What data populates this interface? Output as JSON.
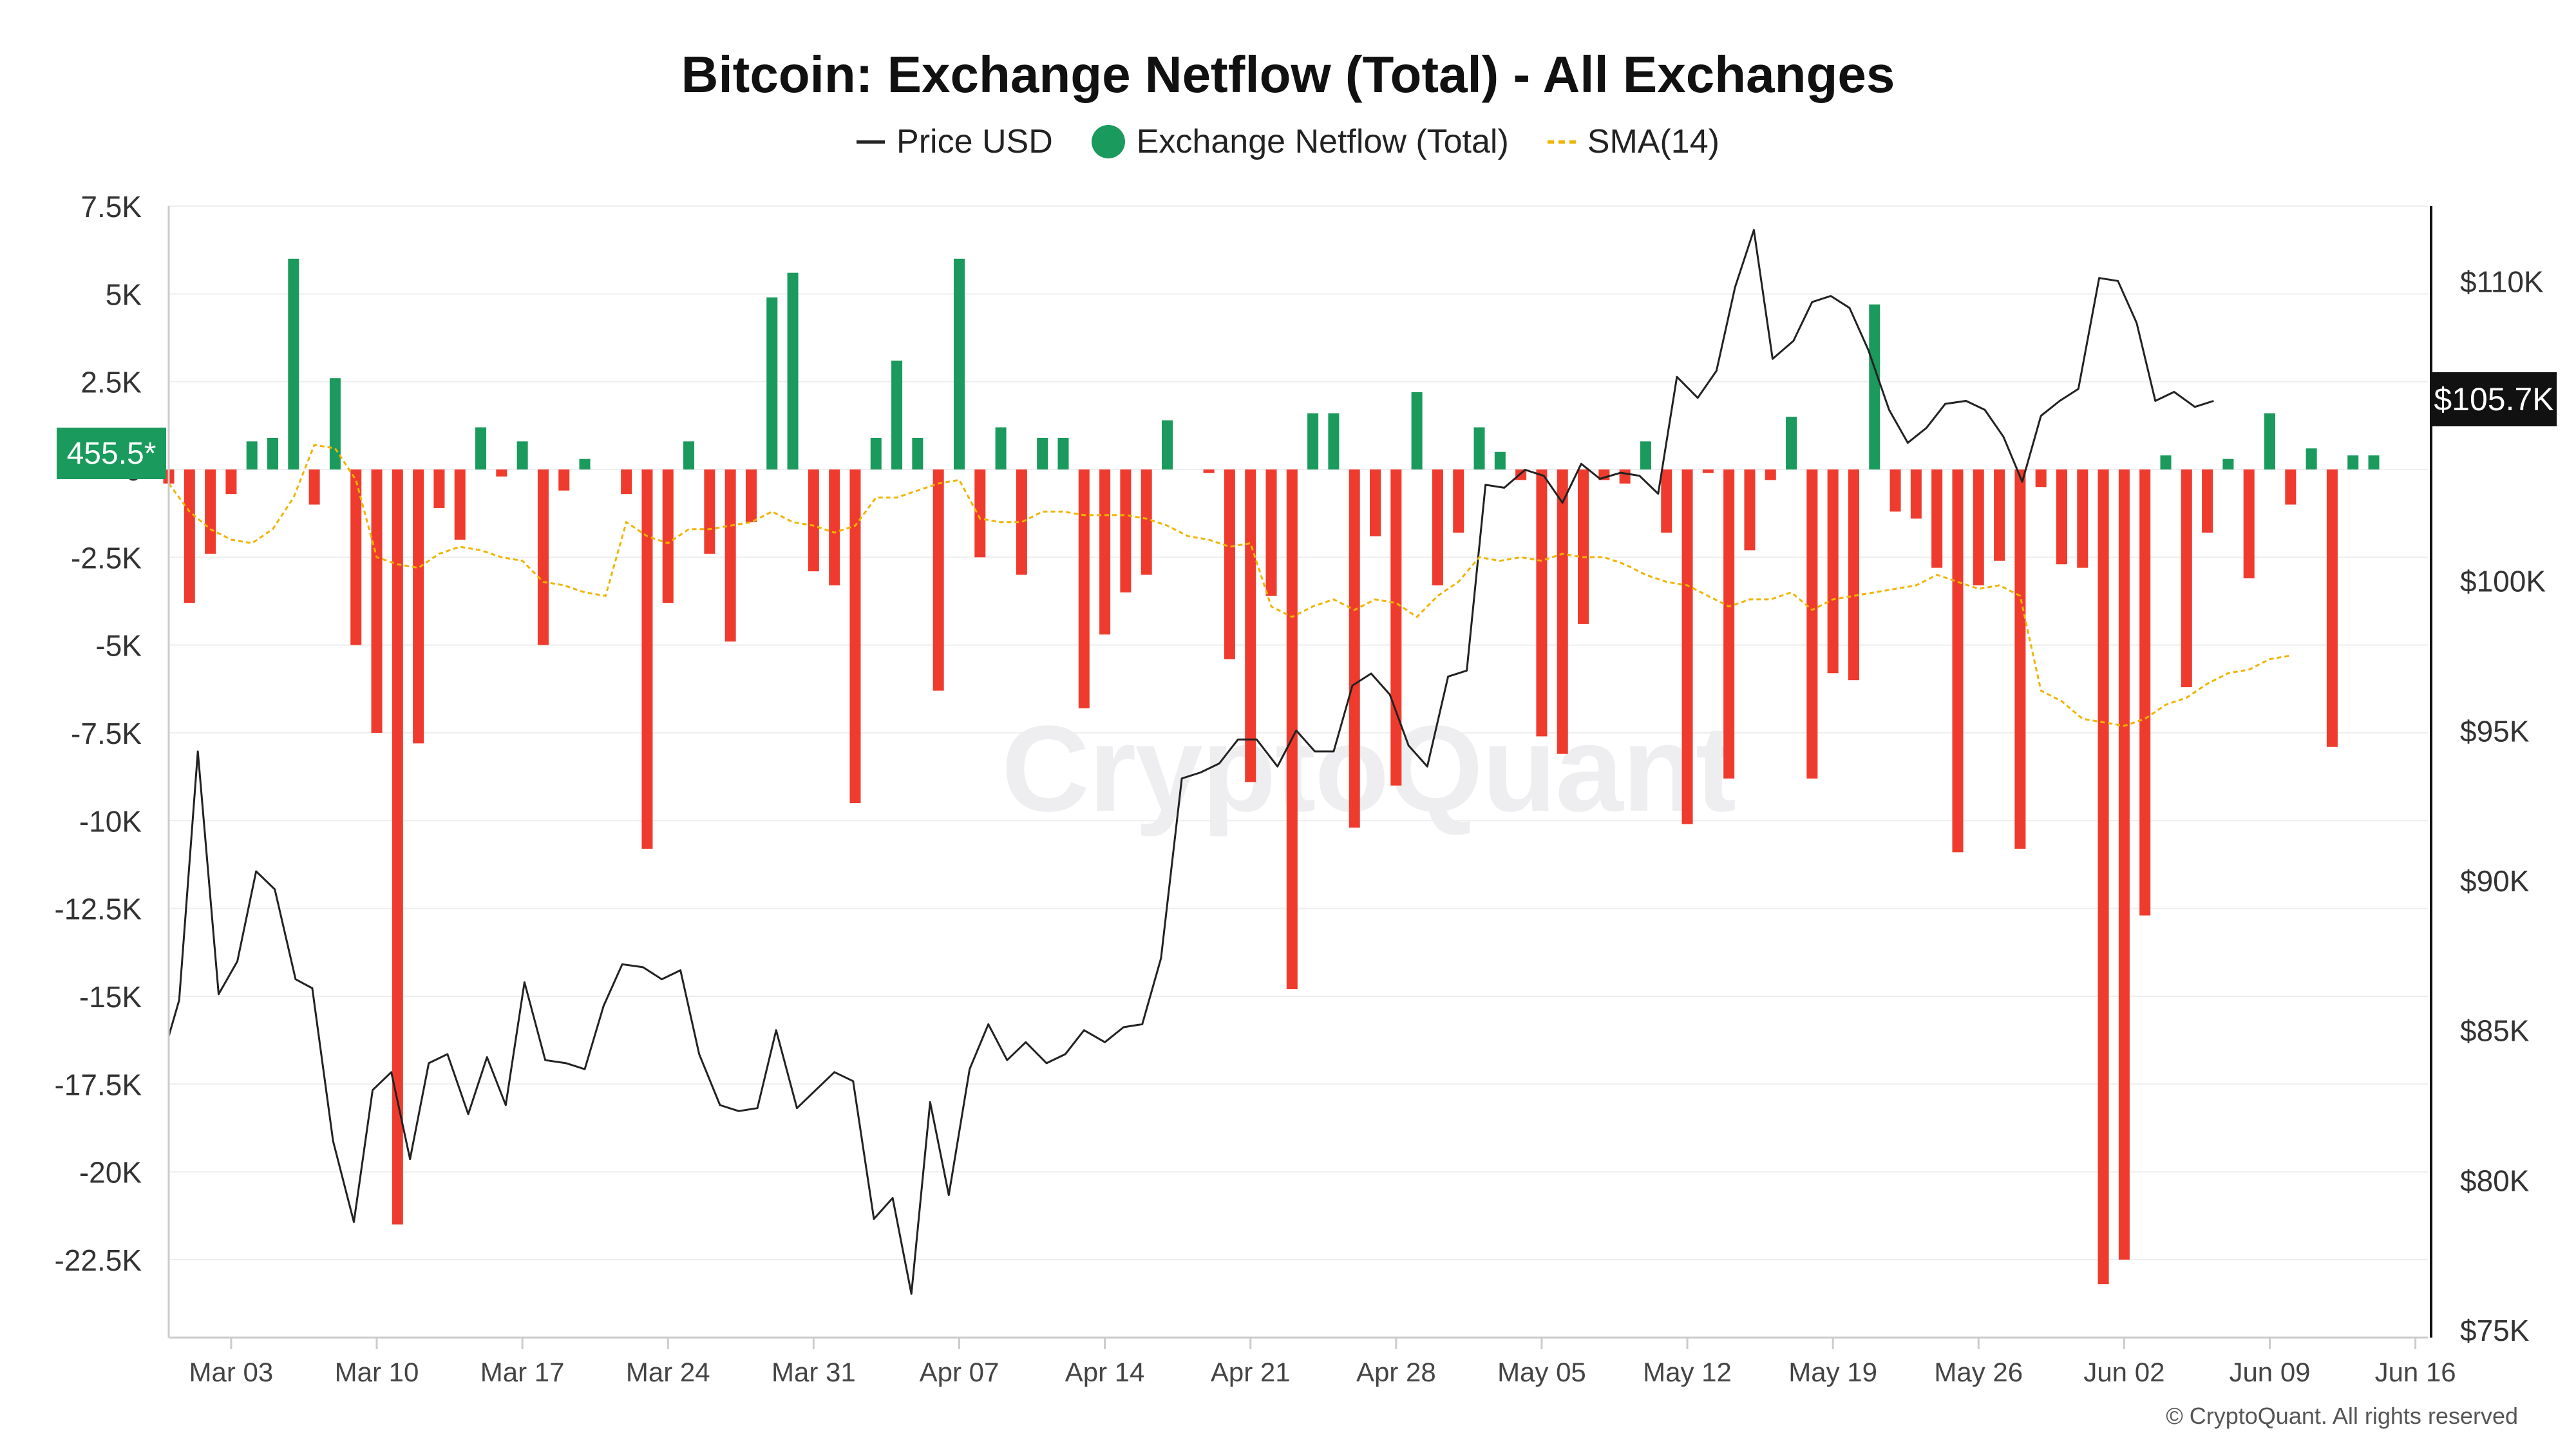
{
  "chart_data": {
    "type": "bar",
    "title": "Bitcoin: Exchange Netflow (Total) - All Exchanges",
    "legend_position": "top-center",
    "legend": [
      {
        "label": "Price USD",
        "symbol": "line",
        "color": "#222222"
      },
      {
        "label": "Exchange Netflow (Total)",
        "symbol": "dot",
        "color": "#1a9a5c"
      },
      {
        "label": "SMA(14)",
        "symbol": "dashed-line",
        "color": "#f0b400"
      }
    ],
    "colors": {
      "positive": "#1a9a5c",
      "negative": "#ef3b2d",
      "price": "#222222",
      "sma": "#f0b400"
    },
    "y_left": {
      "ylim": [
        -24500,
        7500
      ],
      "ticks": [
        7500,
        5000,
        2500,
        0,
        -2500,
        -5000,
        -7500,
        -10000,
        -12500,
        -15000,
        -17500,
        -20000,
        -22500
      ],
      "tick_labels": [
        "7.5K",
        "5K",
        "2.5K",
        "0",
        "-2.5K",
        "-5K",
        "-7.5K",
        "-10K",
        "-12.5K",
        "-15K",
        "-17.5K",
        "-20K",
        "-22.5K"
      ]
    },
    "y_right": {
      "ylim": [
        75000,
        112500
      ],
      "ticks": [
        110000,
        100000,
        95000,
        90000,
        85000,
        80000,
        75000
      ],
      "tick_labels": [
        "$110K",
        "$100K",
        "$95K",
        "$90K",
        "$85K",
        "$80K",
        "$75K"
      ]
    },
    "x_axis": {
      "start_date": "2025-02-28",
      "ticks": [
        {
          "day": 3,
          "label": "Mar 03"
        },
        {
          "day": 10,
          "label": "Mar 10"
        },
        {
          "day": 17,
          "label": "Mar 17"
        },
        {
          "day": 24,
          "label": "Mar 24"
        },
        {
          "day": 31,
          "label": "Mar 31"
        },
        {
          "day": 38,
          "label": "Apr 07"
        },
        {
          "day": 45,
          "label": "Apr 14"
        },
        {
          "day": 52,
          "label": "Apr 21"
        },
        {
          "day": 59,
          "label": "Apr 28"
        },
        {
          "day": 66,
          "label": "May 05"
        },
        {
          "day": 73,
          "label": "May 12"
        },
        {
          "day": 80,
          "label": "May 19"
        },
        {
          "day": 87,
          "label": "May 26"
        },
        {
          "day": 94,
          "label": "Jun 02"
        },
        {
          "day": 101,
          "label": "Jun 09"
        },
        {
          "day": 108,
          "label": "Jun 16"
        }
      ],
      "xlim": [
        0,
        108.6
      ]
    },
    "netflow": [
      [
        0,
        -400
      ],
      [
        1,
        -3800
      ],
      [
        2,
        -2400
      ],
      [
        3,
        -700
      ],
      [
        4,
        800
      ],
      [
        5,
        900
      ],
      [
        6,
        6000
      ],
      [
        7,
        -1000
      ],
      [
        8,
        2600
      ],
      [
        9,
        -5000
      ],
      [
        10,
        -7500
      ],
      [
        11,
        -21500
      ],
      [
        12,
        -7800
      ],
      [
        13,
        -1100
      ],
      [
        14,
        -2000
      ],
      [
        15,
        1200
      ],
      [
        16,
        -200
      ],
      [
        17,
        800
      ],
      [
        18,
        -5000
      ],
      [
        19,
        -600
      ],
      [
        20,
        300
      ],
      [
        22,
        -700
      ],
      [
        23,
        -10800
      ],
      [
        24,
        -3800
      ],
      [
        25,
        800
      ],
      [
        26,
        -2400
      ],
      [
        27,
        -4900
      ],
      [
        28,
        -1500
      ],
      [
        29,
        4900
      ],
      [
        30,
        5600
      ],
      [
        31,
        -2900
      ],
      [
        32,
        -3300
      ],
      [
        33,
        -9500
      ],
      [
        34,
        900
      ],
      [
        35,
        3100
      ],
      [
        36,
        900
      ],
      [
        37,
        -6300
      ],
      [
        38,
        6000
      ],
      [
        39,
        -2500
      ],
      [
        40,
        1200
      ],
      [
        41,
        -3000
      ],
      [
        42,
        900
      ],
      [
        43,
        900
      ],
      [
        44,
        -6800
      ],
      [
        45,
        -4700
      ],
      [
        46,
        -3500
      ],
      [
        47,
        -3000
      ],
      [
        48,
        1400
      ],
      [
        50,
        -100
      ],
      [
        51,
        -5400
      ],
      [
        52,
        -8900
      ],
      [
        53,
        -3600
      ],
      [
        54,
        -14800
      ],
      [
        55,
        1600
      ],
      [
        56,
        1600
      ],
      [
        57,
        -10200
      ],
      [
        58,
        -1900
      ],
      [
        59,
        -9000
      ],
      [
        60,
        2200
      ],
      [
        61,
        -3300
      ],
      [
        62,
        -1800
      ],
      [
        63,
        1200
      ],
      [
        64,
        500
      ],
      [
        65,
        -300
      ],
      [
        66,
        -7600
      ],
      [
        67,
        -8100
      ],
      [
        68,
        -4400
      ],
      [
        69,
        -300
      ],
      [
        70,
        -400
      ],
      [
        71,
        800
      ],
      [
        72,
        -1800
      ],
      [
        73,
        -10100
      ],
      [
        74,
        -100
      ],
      [
        75,
        -8800
      ],
      [
        76,
        -2300
      ],
      [
        77,
        -300
      ],
      [
        78,
        1500
      ],
      [
        79,
        -8800
      ],
      [
        80,
        -5800
      ],
      [
        81,
        -6000
      ],
      [
        82,
        4700
      ],
      [
        83,
        -1200
      ],
      [
        84,
        -1400
      ],
      [
        85,
        -2800
      ],
      [
        86,
        -10900
      ],
      [
        87,
        -3300
      ],
      [
        88,
        -2600
      ],
      [
        89,
        -10800
      ],
      [
        90,
        -500
      ],
      [
        91,
        -2700
      ],
      [
        92,
        -2800
      ],
      [
        93,
        -23200
      ],
      [
        94,
        -22500
      ],
      [
        95,
        -12700
      ],
      [
        96,
        400
      ],
      [
        97,
        -6200
      ],
      [
        98,
        -1800
      ],
      [
        99,
        300
      ],
      [
        100,
        -3100
      ],
      [
        101,
        1600
      ],
      [
        102,
        -1000
      ],
      [
        103,
        600
      ],
      [
        104,
        -7900
      ],
      [
        105,
        400
      ],
      [
        106,
        400
      ]
    ],
    "price_usd": [
      [
        0,
        84800
      ],
      [
        0.5,
        86000
      ],
      [
        1.4,
        94300
      ],
      [
        2.4,
        86200
      ],
      [
        3.3,
        87300
      ],
      [
        4.2,
        90300
      ],
      [
        5.1,
        89700
      ],
      [
        6.1,
        86700
      ],
      [
        6.9,
        86400
      ],
      [
        7.9,
        81300
      ],
      [
        8.9,
        78600
      ],
      [
        9.8,
        83000
      ],
      [
        10.7,
        83600
      ],
      [
        11.6,
        80700
      ],
      [
        12.5,
        83900
      ],
      [
        13.4,
        84200
      ],
      [
        14.4,
        82200
      ],
      [
        15.3,
        84100
      ],
      [
        16.2,
        82500
      ],
      [
        17.1,
        86600
      ],
      [
        18.1,
        84000
      ],
      [
        19.1,
        83900
      ],
      [
        20.0,
        83700
      ],
      [
        20.9,
        85800
      ],
      [
        21.8,
        87200
      ],
      [
        22.8,
        87100
      ],
      [
        23.7,
        86700
      ],
      [
        24.6,
        87000
      ],
      [
        25.5,
        84200
      ],
      [
        26.5,
        82500
      ],
      [
        27.4,
        82300
      ],
      [
        28.3,
        82400
      ],
      [
        29.2,
        85000
      ],
      [
        30.2,
        82400
      ],
      [
        31.1,
        83000
      ],
      [
        32.0,
        83600
      ],
      [
        32.9,
        83300
      ],
      [
        33.9,
        78700
      ],
      [
        34.8,
        79400
      ],
      [
        35.7,
        76200
      ],
      [
        36.6,
        82600
      ],
      [
        37.5,
        79500
      ],
      [
        38.5,
        83700
      ],
      [
        39.4,
        85200
      ],
      [
        40.3,
        84000
      ],
      [
        41.2,
        84600
      ],
      [
        42.2,
        83900
      ],
      [
        43.1,
        84200
      ],
      [
        44.0,
        85000
      ],
      [
        45.0,
        84600
      ],
      [
        45.9,
        85100
      ],
      [
        46.8,
        85200
      ],
      [
        47.7,
        87400
      ],
      [
        48.7,
        93400
      ],
      [
        49.6,
        93600
      ],
      [
        50.5,
        93900
      ],
      [
        51.4,
        94700
      ],
      [
        52.3,
        94700
      ],
      [
        53.3,
        93800
      ],
      [
        54.2,
        95000
      ],
      [
        55.1,
        94300
      ],
      [
        56.0,
        94300
      ],
      [
        56.9,
        96500
      ],
      [
        57.8,
        96900
      ],
      [
        58.7,
        96200
      ],
      [
        59.6,
        94500
      ],
      [
        60.5,
        93800
      ],
      [
        61.5,
        96800
      ],
      [
        62.4,
        97000
      ],
      [
        63.3,
        103200
      ],
      [
        64.2,
        103100
      ],
      [
        65.2,
        103700
      ],
      [
        66.1,
        103500
      ],
      [
        67.0,
        102600
      ],
      [
        67.9,
        103900
      ],
      [
        68.8,
        103400
      ],
      [
        69.8,
        103600
      ],
      [
        70.7,
        103500
      ],
      [
        71.6,
        102900
      ],
      [
        72.5,
        106800
      ],
      [
        73.5,
        106100
      ],
      [
        74.4,
        107000
      ],
      [
        75.3,
        109800
      ],
      [
        76.2,
        111700
      ],
      [
        77.1,
        107400
      ],
      [
        78.1,
        108000
      ],
      [
        79.0,
        109300
      ],
      [
        79.9,
        109500
      ],
      [
        80.8,
        109100
      ],
      [
        81.7,
        107700
      ],
      [
        82.7,
        105700
      ],
      [
        83.6,
        104600
      ],
      [
        84.5,
        105100
      ],
      [
        85.4,
        105900
      ],
      [
        86.4,
        106000
      ],
      [
        87.3,
        105700
      ],
      [
        88.2,
        104800
      ],
      [
        89.1,
        103300
      ],
      [
        90.0,
        105500
      ],
      [
        90.9,
        106000
      ],
      [
        91.8,
        106400
      ],
      [
        92.8,
        110100
      ],
      [
        93.7,
        110000
      ],
      [
        94.6,
        108600
      ],
      [
        95.5,
        106000
      ],
      [
        96.4,
        106300
      ],
      [
        97.4,
        105800
      ],
      [
        98.3,
        106000
      ]
    ],
    "sma14": [
      [
        0,
        -400
      ],
      [
        1,
        -1200
      ],
      [
        2,
        -1700
      ],
      [
        3,
        -2000
      ],
      [
        4,
        -2100
      ],
      [
        5,
        -1700
      ],
      [
        6,
        -800
      ],
      [
        7,
        700
      ],
      [
        8,
        600
      ],
      [
        9,
        -300
      ],
      [
        10,
        -2500
      ],
      [
        11,
        -2700
      ],
      [
        12,
        -2800
      ],
      [
        13,
        -2400
      ],
      [
        14,
        -2200
      ],
      [
        15,
        -2300
      ],
      [
        16,
        -2500
      ],
      [
        17,
        -2600
      ],
      [
        18,
        -3200
      ],
      [
        19,
        -3300
      ],
      [
        20,
        -3500
      ],
      [
        21,
        -3600
      ],
      [
        22,
        -1500
      ],
      [
        23,
        -1900
      ],
      [
        24,
        -2100
      ],
      [
        25,
        -1700
      ],
      [
        26,
        -1700
      ],
      [
        27,
        -1600
      ],
      [
        28,
        -1500
      ],
      [
        29,
        -1200
      ],
      [
        30,
        -1500
      ],
      [
        31,
        -1600
      ],
      [
        32,
        -1800
      ],
      [
        33,
        -1600
      ],
      [
        34,
        -800
      ],
      [
        35,
        -800
      ],
      [
        36,
        -600
      ],
      [
        37,
        -400
      ],
      [
        38,
        -300
      ],
      [
        39,
        -1400
      ],
      [
        40,
        -1500
      ],
      [
        41,
        -1500
      ],
      [
        42,
        -1200
      ],
      [
        43,
        -1200
      ],
      [
        44,
        -1300
      ],
      [
        45,
        -1300
      ],
      [
        46,
        -1300
      ],
      [
        47,
        -1400
      ],
      [
        48,
        -1600
      ],
      [
        49,
        -1900
      ],
      [
        50,
        -2000
      ],
      [
        51,
        -2200
      ],
      [
        52,
        -2100
      ],
      [
        53,
        -3900
      ],
      [
        54,
        -4200
      ],
      [
        55,
        -3900
      ],
      [
        56,
        -3700
      ],
      [
        57,
        -4000
      ],
      [
        58,
        -3700
      ],
      [
        59,
        -3800
      ],
      [
        60,
        -4200
      ],
      [
        61,
        -3600
      ],
      [
        62,
        -3200
      ],
      [
        63,
        -2500
      ],
      [
        64,
        -2600
      ],
      [
        65,
        -2500
      ],
      [
        66,
        -2600
      ],
      [
        67,
        -2400
      ],
      [
        68,
        -2500
      ],
      [
        69,
        -2500
      ],
      [
        70,
        -2700
      ],
      [
        71,
        -3000
      ],
      [
        72,
        -3200
      ],
      [
        73,
        -3300
      ],
      [
        74,
        -3600
      ],
      [
        75,
        -3900
      ],
      [
        76,
        -3700
      ],
      [
        77,
        -3700
      ],
      [
        78,
        -3500
      ],
      [
        79,
        -4000
      ],
      [
        80,
        -3700
      ],
      [
        81,
        -3600
      ],
      [
        82,
        -3500
      ],
      [
        83,
        -3400
      ],
      [
        84,
        -3300
      ],
      [
        85,
        -3000
      ],
      [
        86,
        -3200
      ],
      [
        87,
        -3400
      ],
      [
        88,
        -3300
      ],
      [
        89,
        -3600
      ],
      [
        90,
        -6300
      ],
      [
        91,
        -6600
      ],
      [
        92,
        -7100
      ],
      [
        93,
        -7200
      ],
      [
        94,
        -7300
      ],
      [
        95,
        -7100
      ],
      [
        96,
        -6700
      ],
      [
        97,
        -6500
      ],
      [
        98,
        -6100
      ],
      [
        99,
        -5800
      ],
      [
        100,
        -5700
      ],
      [
        101,
        -5400
      ],
      [
        102,
        -5300
      ]
    ],
    "current_netflow_label": "455.5*",
    "current_price_label": "$105.7K"
  },
  "watermark": "CryptoQuant",
  "copyright": "© CryptoQuant. All rights reserved"
}
